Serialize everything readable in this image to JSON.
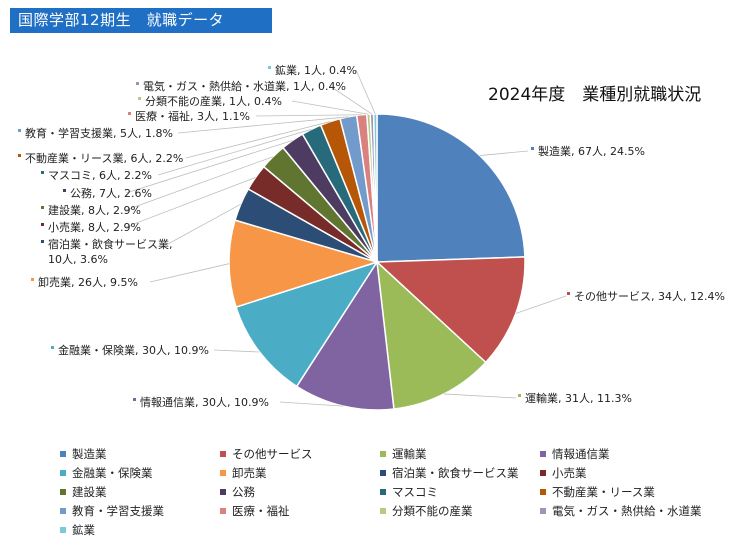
{
  "banner": {
    "text": "国際学部12期生　就職データ"
  },
  "chart_data": {
    "type": "pie",
    "title": "2024年度　業種別就職状況",
    "slices": [
      {
        "name": "製造業",
        "count": 67,
        "label": "製造業, 67人, 24.5%",
        "color": "#4f81bd"
      },
      {
        "name": "その他サービス",
        "count": 34,
        "label": "その他サービス, 34人, 12.4%",
        "color": "#c0504d"
      },
      {
        "name": "運輸業",
        "count": 31,
        "label": "運輸業, 31人, 11.3%",
        "color": "#9bbb59"
      },
      {
        "name": "情報通信業",
        "count": 30,
        "label": "情報通信業, 30人, 10.9%",
        "color": "#8064a2"
      },
      {
        "name": "金融業・保険業",
        "count": 30,
        "label": "金融業・保険業, 30人, 10.9%",
        "color": "#4bacc6"
      },
      {
        "name": "卸売業",
        "count": 26,
        "label": "卸売業, 26人, 9.5%",
        "color": "#f79646"
      },
      {
        "name": "宿泊業・飲食サービス業",
        "count": 10,
        "label": "宿泊業・飲食サービス業,",
        "label2": "10人, 3.6%",
        "color": "#2c4d75"
      },
      {
        "name": "小売業",
        "count": 8,
        "label": "小売業, 8人, 2.9%",
        "color": "#772c2a"
      },
      {
        "name": "建設業",
        "count": 8,
        "label": "建設業, 8人, 2.9%",
        "color": "#5f7530"
      },
      {
        "name": "公務",
        "count": 7,
        "label": "公務, 7人, 2.6%",
        "color": "#4d3b62"
      },
      {
        "name": "マスコミ",
        "count": 6,
        "label": "マスコミ, 6人, 2.2%",
        "color": "#276a7c"
      },
      {
        "name": "不動産業・リース業",
        "count": 6,
        "label": "不動産業・リース業, 6人, 2.2%",
        "color": "#b65708"
      },
      {
        "name": "教育・学習支援業",
        "count": 5,
        "label": "教育・学習支援業, 5人, 1.8%",
        "color": "#729aca"
      },
      {
        "name": "医療・福祉",
        "count": 3,
        "label": "医療・福祉, 3人, 1.1%",
        "color": "#d9817f"
      },
      {
        "name": "分類不能の産業",
        "count": 1,
        "label": "分類不能の産業, 1人, 0.4%",
        "color": "#b3cc82"
      },
      {
        "name": "電気・ガス・熱供給・水道業",
        "count": 1,
        "label": "電気・ガス・熱供給・水道業, 1人, 0.4%",
        "color": "#a491b8"
      },
      {
        "name": "鉱業",
        "count": 1,
        "label": "鉱業, 1人, 0.4%",
        "color": "#7fc8d8"
      }
    ]
  }
}
